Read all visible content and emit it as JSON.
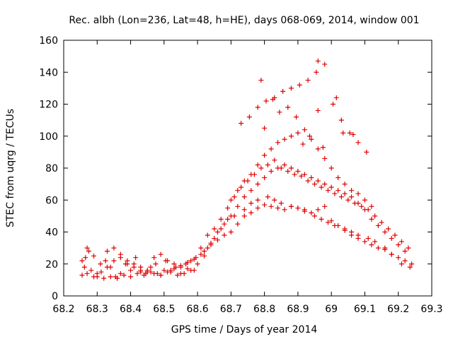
{
  "chart_data": {
    "type": "scatter",
    "title": "Rec. albh (Lon=236, Lat=48, h=HE), days 068-069, 2014, window 001",
    "xlabel": "GPS time / Days of year 2014",
    "ylabel": "STEC from uqrg / TECUs",
    "xlim": [
      68.2,
      69.3
    ],
    "ylim": [
      0,
      160
    ],
    "xticks": [
      "68.2",
      "68.3",
      "68.4",
      "68.5",
      "68.6",
      "68.7",
      "68.8",
      "68.9",
      "69",
      "69.1",
      "69.2",
      "69.3"
    ],
    "yticks": [
      "0",
      "20",
      "40",
      "60",
      "80",
      "100",
      "120",
      "140",
      "160"
    ],
    "grid": false,
    "marker": "+",
    "color": "#e00000",
    "series": [
      {
        "name": "STEC",
        "x": [
          68.255,
          68.262,
          68.27,
          68.282,
          68.255,
          68.265,
          68.275,
          68.29,
          68.3,
          68.312,
          68.325,
          68.34,
          68.355,
          68.37,
          68.385,
          68.4,
          68.415,
          68.43,
          68.445,
          68.46,
          68.475,
          68.49,
          68.505,
          68.52,
          68.535,
          68.55,
          68.565,
          68.58,
          68.595,
          68.3,
          68.32,
          68.34,
          68.36,
          68.38,
          68.4,
          68.42,
          68.44,
          68.46,
          68.48,
          68.5,
          68.52,
          68.54,
          68.56,
          68.58,
          68.6,
          68.62,
          68.64,
          68.66,
          68.68,
          68.7,
          68.72,
          68.74,
          68.76,
          68.78,
          68.8,
          68.82,
          68.84,
          68.86,
          68.88,
          68.9,
          68.92,
          68.94,
          68.96,
          68.98,
          69.0,
          69.02,
          69.04,
          69.06,
          69.08,
          69.1,
          69.12,
          69.14,
          69.16,
          69.18,
          69.2,
          69.22,
          69.24,
          68.61,
          68.63,
          68.65,
          68.67,
          68.69,
          68.71,
          68.73,
          68.75,
          68.77,
          68.79,
          68.81,
          68.83,
          68.85,
          68.87,
          68.89,
          68.91,
          68.93,
          68.95,
          68.97,
          68.99,
          69.01,
          69.03,
          69.05,
          69.07,
          69.09,
          69.11,
          69.13,
          69.15,
          69.17,
          69.19,
          69.21,
          69.23,
          68.7,
          68.72,
          68.74,
          68.76,
          68.78,
          68.8,
          68.82,
          68.84,
          68.86,
          68.88,
          68.9,
          68.92,
          68.94,
          68.96,
          68.98,
          69.0,
          69.02,
          69.04,
          69.06,
          69.08,
          69.1,
          69.12,
          68.73,
          68.755,
          68.78,
          68.805,
          68.83,
          68.855,
          68.88,
          68.905,
          68.93,
          68.955,
          68.98,
          69.005,
          69.03,
          69.055,
          69.08,
          69.105,
          68.79,
          68.8,
          68.825,
          68.845,
          68.87,
          68.895,
          68.915,
          68.935,
          68.96,
          68.975,
          69.015,
          69.065,
          69.035,
          68.96,
          68.33,
          68.35,
          68.37,
          68.39,
          68.41,
          68.43,
          68.45,
          68.47,
          68.49,
          68.51,
          68.53,
          68.55,
          68.57,
          68.59,
          68.27,
          68.29,
          68.31,
          68.33,
          68.35,
          68.37,
          68.39,
          68.41,
          68.43,
          68.45,
          68.47,
          68.49,
          68.51,
          68.53,
          68.55,
          68.57,
          68.59,
          68.61,
          68.63,
          68.65,
          68.67,
          68.69,
          68.71,
          68.74,
          68.76,
          68.78,
          68.81,
          68.83,
          68.85,
          68.88,
          68.9,
          68.92,
          68.95,
          68.97,
          68.99,
          69.01,
          69.04,
          69.06,
          69.08,
          69.11,
          69.13,
          69.16,
          69.18,
          69.21,
          69.235,
          68.62,
          68.64,
          68.66,
          68.68,
          68.7,
          68.72,
          68.74,
          68.76,
          68.78,
          68.8,
          68.82,
          68.84,
          68.86,
          68.88,
          68.9,
          68.92,
          68.94,
          68.96,
          68.98,
          69.0,
          69.02,
          69.04,
          69.06,
          69.08,
          69.1,
          69.12,
          69.14,
          69.16,
          69.18,
          69.2,
          69.22
        ],
        "y": [
          22,
          18,
          14,
          16,
          13,
          24,
          28,
          12,
          14,
          15,
          22,
          18,
          12,
          14,
          20,
          16,
          24,
          15,
          14,
          18,
          20,
          13,
          22,
          16,
          18,
          14,
          20,
          22,
          24,
          12,
          11,
          12,
          11,
          13,
          12,
          14,
          13,
          15,
          14,
          16,
          15,
          13,
          14,
          16,
          20,
          25,
          32,
          35,
          38,
          40,
          45,
          50,
          52,
          55,
          57,
          56,
          55,
          54,
          56,
          55,
          53,
          52,
          54,
          56,
          47,
          44,
          41,
          38,
          36,
          34,
          32,
          30,
          29,
          26,
          24,
          22,
          20,
          30,
          38,
          42,
          48,
          55,
          62,
          68,
          72,
          76,
          80,
          82,
          85,
          80,
          78,
          76,
          75,
          72,
          70,
          68,
          66,
          64,
          62,
          60,
          58,
          56,
          54,
          50,
          46,
          42,
          38,
          34,
          30,
          60,
          66,
          72,
          76,
          82,
          88,
          92,
          96,
          98,
          100,
          102,
          104,
          98,
          92,
          86,
          80,
          74,
          70,
          66,
          64,
          60,
          56,
          108,
          112,
          118,
          122,
          124,
          128,
          130,
          132,
          135,
          140,
          145,
          120,
          110,
          102,
          96,
          90,
          135,
          105,
          123,
          115,
          118,
          112,
          95,
          100,
          147,
          93,
          124,
          101,
          102,
          116,
          28,
          30,
          26,
          22,
          20,
          18,
          16,
          24,
          26,
          22,
          20,
          18,
          17,
          16,
          30,
          25,
          20,
          18,
          22,
          24,
          20,
          18,
          16,
          15,
          14,
          13,
          15,
          17,
          19,
          21,
          23,
          26,
          30,
          36,
          42,
          48,
          50,
          54,
          58,
          60,
          62,
          60,
          58,
          56,
          55,
          54,
          50,
          48,
          46,
          44,
          42,
          40,
          38,
          36,
          34,
          30,
          26,
          20,
          18,
          28,
          33,
          40,
          45,
          50,
          56,
          62,
          66,
          70,
          74,
          78,
          80,
          82,
          80,
          78,
          76,
          74,
          72,
          70,
          68,
          66,
          64,
          62,
          58,
          54,
          48,
          44,
          40,
          36,
          32,
          28
        ]
      }
    ]
  }
}
